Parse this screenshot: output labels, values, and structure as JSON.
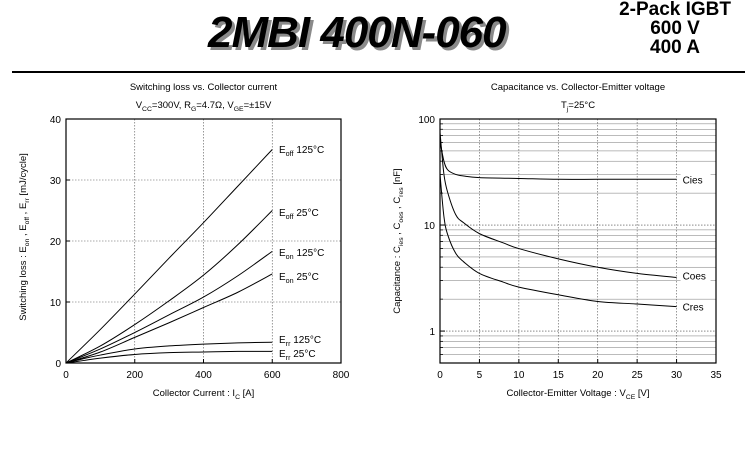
{
  "header": {
    "title": "2MBI 400N-060",
    "spec_lines": [
      "2-Pack IGBT",
      "600 V",
      "400 A"
    ]
  },
  "chart_data": [
    {
      "type": "line",
      "title": "Switching loss vs. Collector current",
      "conditions": {
        "vcc": "300V",
        "rg": "4.7Ω",
        "vge": "±15V"
      },
      "xlabel": {
        "main": "Collector Current : I",
        "sub": "C",
        "tail": " [A]"
      },
      "ylabel": "Switching loss : E on , E off , E rr [mJ/cycle]",
      "xlim": [
        0,
        800
      ],
      "ylim": [
        0,
        40
      ],
      "xticks": [
        0,
        200,
        400,
        600,
        800
      ],
      "yticks": [
        0,
        10,
        20,
        30,
        40
      ],
      "grid": true,
      "series": [
        {
          "name": "Eoff 125°C",
          "sym": "E",
          "sub": "off",
          "temp": "125°C",
          "x": [
            0,
            100,
            200,
            300,
            400,
            500,
            600
          ],
          "y": [
            0,
            5.5,
            11.3,
            17.2,
            23.0,
            29.0,
            35.0
          ]
        },
        {
          "name": "Eoff 25°C",
          "sym": "E",
          "sub": "off",
          "temp": "25°C",
          "x": [
            0,
            100,
            200,
            300,
            400,
            500,
            600
          ],
          "y": [
            0,
            2.8,
            6.3,
            10.2,
            14.4,
            19.4,
            25.0
          ]
        },
        {
          "name": "Eon 125°C",
          "sym": "E",
          "sub": "on",
          "temp": "125°C",
          "x": [
            0,
            100,
            200,
            300,
            400,
            500,
            600
          ],
          "y": [
            0,
            2.3,
            5.0,
            7.9,
            10.8,
            14.3,
            18.3
          ]
        },
        {
          "name": "Eon 25°C",
          "sym": "E",
          "sub": "on",
          "temp": "25°C",
          "x": [
            0,
            100,
            200,
            300,
            400,
            500,
            600
          ],
          "y": [
            0,
            1.8,
            4.2,
            6.6,
            9.1,
            11.6,
            14.6
          ]
        },
        {
          "name": "Err 125°C",
          "sym": "E",
          "sub": "rr",
          "temp": "125°C",
          "x": [
            0,
            50,
            100,
            200,
            300,
            400,
            500,
            600
          ],
          "y": [
            0,
            0.7,
            1.3,
            2.3,
            2.8,
            3.1,
            3.3,
            3.4
          ]
        },
        {
          "name": "Err 25°C",
          "sym": "E",
          "sub": "rr",
          "temp": "25°C",
          "x": [
            0,
            50,
            100,
            200,
            300,
            400,
            500,
            600
          ],
          "y": [
            0,
            0.4,
            0.8,
            1.4,
            1.7,
            1.8,
            1.9,
            1.9
          ]
        }
      ]
    },
    {
      "type": "line",
      "title": "Capacitance vs. Collector-Emitter voltage",
      "conditions": {
        "tj": "25°C"
      },
      "xlabel": {
        "main": "Collector-Emitter Voltage : V",
        "sub": "CE",
        "tail": " [V]"
      },
      "ylabel": "Capacitance : C ies , C oes , C res [nF]",
      "xlim": [
        0,
        35
      ],
      "ylim": [
        0.5,
        100
      ],
      "yscale": "log",
      "xticks": [
        0,
        5,
        10,
        15,
        20,
        25,
        30,
        35
      ],
      "yticks": [
        1,
        10,
        100
      ],
      "grid": true,
      "series": [
        {
          "name": "Cies",
          "x": [
            0,
            0.5,
            1,
            2,
            3,
            5,
            10,
            15,
            20,
            25,
            30
          ],
          "y": [
            62,
            40,
            33,
            30,
            29,
            28,
            27.5,
            27,
            27,
            27,
            27
          ]
        },
        {
          "name": "Coes",
          "x": [
            0,
            0.5,
            1,
            2,
            3,
            5,
            8,
            10,
            15,
            20,
            25,
            30
          ],
          "y": [
            75,
            30,
            20,
            12.5,
            10.5,
            8.3,
            6.8,
            6.0,
            4.8,
            4.0,
            3.5,
            3.2
          ]
        },
        {
          "name": "Cres",
          "x": [
            0,
            0.5,
            1,
            2,
            3,
            5,
            8,
            10,
            15,
            20,
            25,
            30
          ],
          "y": [
            30,
            12,
            8,
            5.4,
            4.5,
            3.5,
            2.9,
            2.6,
            2.2,
            1.9,
            1.8,
            1.7
          ]
        }
      ]
    }
  ]
}
